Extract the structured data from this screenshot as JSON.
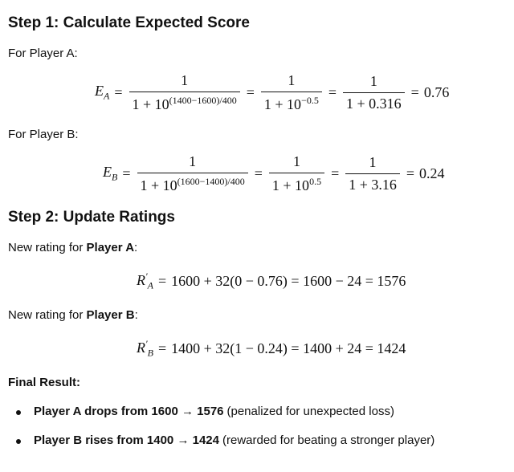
{
  "equals": "=",
  "step1": {
    "heading": "Step 1: Calculate Expected Score",
    "player_a": {
      "label": "For Player A:",
      "lhs": "E",
      "lhs_sub": "A",
      "terms": [
        {
          "num": "1",
          "den": "1 + 10",
          "den_exp": "(1400−1600)/400"
        },
        {
          "num": "1",
          "den": "1 + 10",
          "den_exp": "−0.5"
        },
        {
          "num": "1",
          "den": "1 + 0.316"
        }
      ],
      "result": "0.76"
    },
    "player_b": {
      "label": "For Player B:",
      "lhs": "E",
      "lhs_sub": "B",
      "terms": [
        {
          "num": "1",
          "den": "1 + 10",
          "den_exp": "(1600−1400)/400"
        },
        {
          "num": "1",
          "den": "1 + 10",
          "den_exp": "0.5"
        },
        {
          "num": "1",
          "den": "1 + 3.16"
        }
      ],
      "result": "0.24"
    }
  },
  "step2": {
    "heading": "Step 2: Update Ratings",
    "player_a": {
      "label_prefix": "New rating for",
      "label_name": "Player A",
      "label_suffix": ":",
      "lhs": "R",
      "lhs_sup": "′",
      "lhs_sub": "A",
      "rhs": "1600 + 32(0 − 0.76) = 1600 − 24 = 1576"
    },
    "player_b": {
      "label_prefix": "New rating for",
      "label_name": "Player B",
      "label_suffix": ":",
      "lhs": "R",
      "lhs_sup": "′",
      "lhs_sub": "B",
      "rhs": "1400 + 32(1 − 0.24) = 1400 + 24 = 1424"
    }
  },
  "final": {
    "heading": "Final Result:",
    "bullets": [
      {
        "bold": "Player A drops from 1600 → 1576",
        "text": "(penalized for unexpected loss)"
      },
      {
        "bold": "Player B rises from 1400 → 1424",
        "text": "(rewarded for beating a stronger player)"
      }
    ]
  }
}
